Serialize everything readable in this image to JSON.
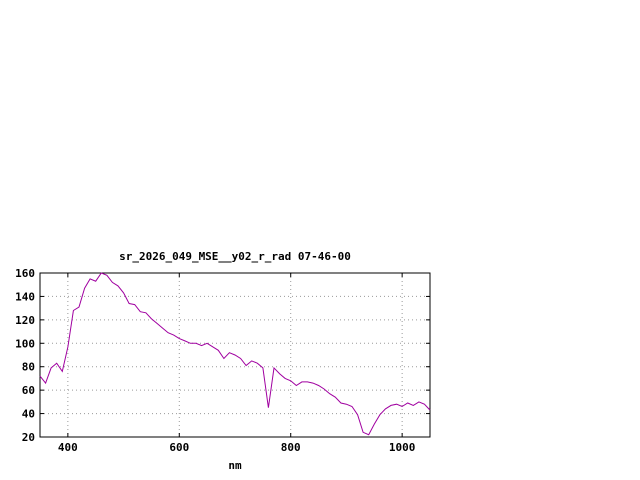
{
  "chart": {
    "title": "sr_2026_049_MSE__y02_r_rad 07-46-00",
    "xlabel": "nm"
  },
  "chart_data": {
    "type": "line",
    "title": "sr_2026_049_MSE__y02_r_rad 07-46-00",
    "xlabel": "nm",
    "ylabel": "",
    "xlim": [
      350,
      1050
    ],
    "ylim": [
      20,
      160
    ],
    "x_ticks": [
      400,
      600,
      800,
      1000
    ],
    "y_ticks": [
      20,
      40,
      60,
      80,
      100,
      120,
      140,
      160
    ],
    "grid": true,
    "legend": "none",
    "line_color": "#a000a0",
    "grid_color": "#9a9a9a",
    "axis_color": "#000000",
    "series": [
      {
        "name": "sr_2026_049_MSE__y02_r_rad",
        "x": [
          350,
          360,
          370,
          380,
          390,
          400,
          410,
          420,
          430,
          440,
          450,
          460,
          470,
          480,
          490,
          500,
          510,
          520,
          530,
          540,
          550,
          560,
          570,
          580,
          590,
          600,
          610,
          620,
          630,
          640,
          650,
          660,
          670,
          680,
          690,
          700,
          710,
          720,
          730,
          740,
          750,
          760,
          770,
          780,
          790,
          800,
          810,
          820,
          830,
          840,
          850,
          860,
          870,
          880,
          890,
          900,
          910,
          920,
          930,
          940,
          950,
          960,
          970,
          980,
          990,
          1000,
          1010,
          1020,
          1030,
          1040,
          1050
        ],
        "y": [
          72,
          66,
          79,
          83,
          76,
          97,
          128,
          131,
          147,
          155,
          153,
          160,
          158,
          152,
          149,
          143,
          134,
          133,
          127,
          126,
          121,
          117,
          113,
          109,
          107,
          104,
          102,
          100,
          100,
          98,
          100,
          97,
          94,
          87,
          92,
          90,
          87,
          81,
          85,
          83,
          79,
          45,
          79,
          74,
          70,
          68,
          64,
          67,
          67,
          66,
          64,
          61,
          57,
          54,
          49,
          48,
          46,
          39,
          24,
          22,
          31,
          39,
          44,
          47,
          48,
          46,
          49,
          47,
          50,
          48,
          43
        ]
      }
    ]
  }
}
